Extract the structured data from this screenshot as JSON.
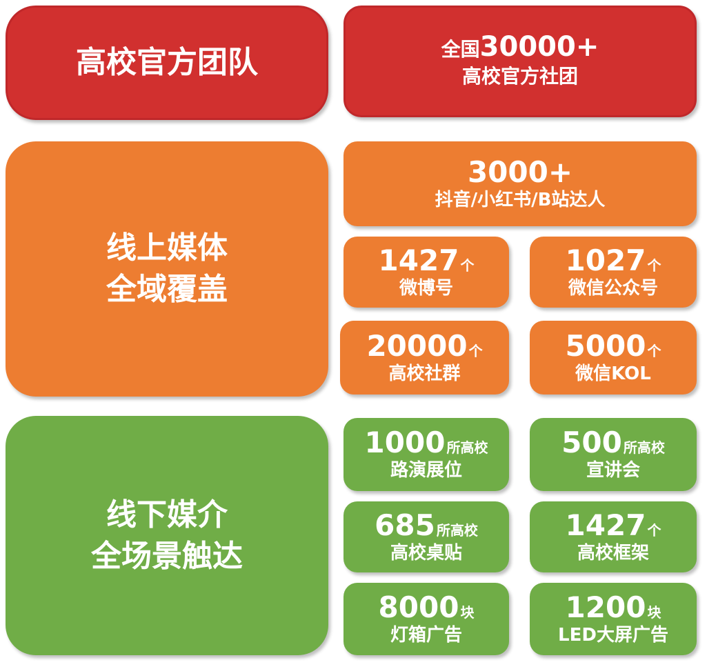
{
  "colors": {
    "red": "#d1302f",
    "orange": "#ed7d31",
    "green": "#70ad47"
  },
  "team": {
    "title": "高校官方团队",
    "prefix": "全国",
    "number": "30000+",
    "subtitle": "高校官方社团"
  },
  "online": {
    "title_line1": "线上媒体",
    "title_line2": "全域覆盖",
    "headline": {
      "number": "3000+",
      "label": "抖音/小红书/B站达人"
    },
    "tiles": [
      {
        "number": "1427",
        "unit": "个",
        "label": "微博号"
      },
      {
        "number": "1027",
        "unit": "个",
        "label": "微信公众号"
      },
      {
        "number": "20000",
        "unit": "个",
        "label": "高校社群"
      },
      {
        "number": "5000",
        "unit": "个",
        "label": "微信KOL"
      }
    ]
  },
  "offline": {
    "title_line1": "线下媒介",
    "title_line2": "全场景触达",
    "tiles": [
      {
        "number": "1000",
        "unit": "所高校",
        "label": "路演展位"
      },
      {
        "number": "500",
        "unit": "所高校",
        "label": "宣讲会"
      },
      {
        "number": "685",
        "unit": "所高校",
        "label": "高校桌贴"
      },
      {
        "number": "1427",
        "unit": "个",
        "label": "高校框架"
      },
      {
        "number": "8000",
        "unit": "块",
        "label": "灯箱广告"
      },
      {
        "number": "1200",
        "unit": "块",
        "label": "LED大屏广告"
      }
    ]
  }
}
